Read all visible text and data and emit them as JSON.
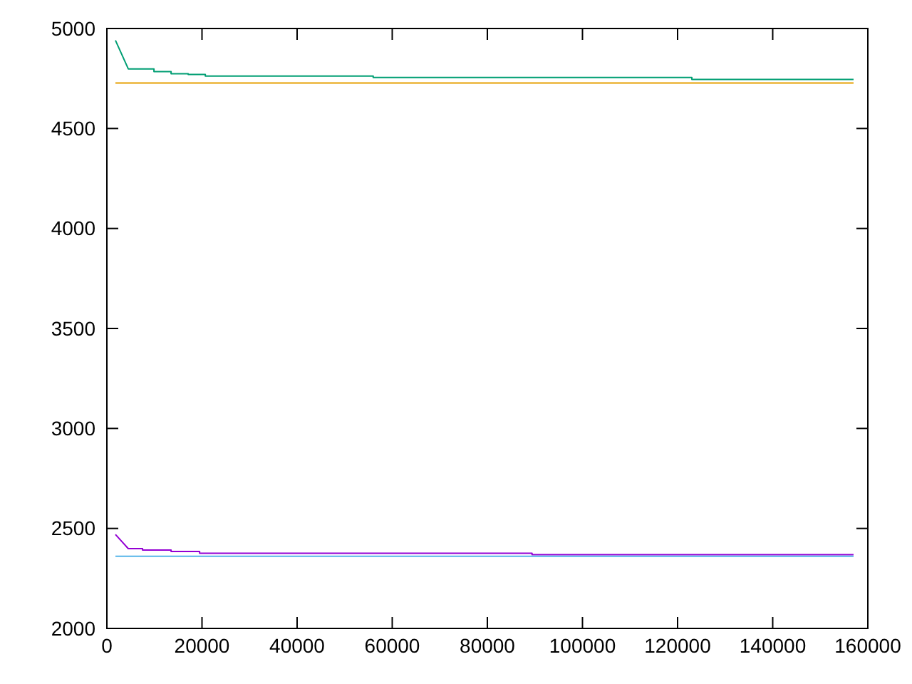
{
  "chart_data": {
    "type": "line",
    "xlim": [
      0,
      160000
    ],
    "ylim": [
      2000,
      5000
    ],
    "xticks": [
      0,
      20000,
      40000,
      60000,
      80000,
      100000,
      120000,
      140000,
      160000
    ],
    "yticks": [
      2000,
      2500,
      3000,
      3500,
      4000,
      4500,
      5000
    ],
    "grid": false,
    "line_style": "solid",
    "series": [
      {
        "color": "#9400d3",
        "x": [
          1800,
          4500,
          7500,
          7500,
          13500,
          13500,
          19500,
          19500,
          89400,
          89400,
          157000
        ],
        "values": [
          2470,
          2399,
          2399,
          2392,
          2392,
          2385,
          2385,
          2376,
          2376,
          2369,
          2369
        ]
      },
      {
        "color": "#009e73",
        "x": [
          1800,
          4500,
          9900,
          9900,
          13500,
          13500,
          17100,
          17100,
          20700,
          20700,
          56000,
          56000,
          123000,
          123000,
          157000
        ],
        "values": [
          4941,
          4798,
          4798,
          4784,
          4784,
          4774,
          4774,
          4770,
          4770,
          4762,
          4762,
          4755,
          4755,
          4745,
          4745
        ]
      },
      {
        "color": "#56b4e9",
        "x": [
          1800,
          157000
        ],
        "values": [
          2361,
          2361
        ]
      },
      {
        "color": "#e69f00",
        "x": [
          1800,
          157000
        ],
        "values": [
          4727,
          4727
        ]
      }
    ]
  }
}
